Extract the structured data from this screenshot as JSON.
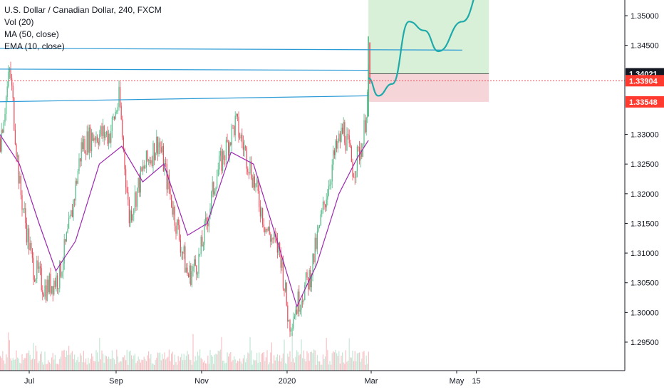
{
  "legend": {
    "title": "U.S. Dollar / Canadian Dollar, 240, FXCM",
    "indicators": [
      "Vol (20)",
      "MA (50, close)",
      "EMA (10, close)"
    ]
  },
  "colors": {
    "up": "#53b987",
    "down": "#eb4d5c",
    "ma": "#9c27b0",
    "ema": "#2196f3",
    "trendline": "#2a9ad6",
    "target_zone": "#d8f0d8",
    "stop_zone": "#f6d5d8",
    "projection": "#1eaaaa",
    "last_price": "#eb4d5c",
    "axis_border": "#131722",
    "tag_dark": "#131722",
    "tag_red": "#ff3b30"
  },
  "chart_data": {
    "type": "candlestick",
    "title": "U.S. Dollar / Canadian Dollar, 240, FXCM",
    "symbol": "USDCAD",
    "timeframe": "240",
    "x_tick_labels": [
      "Jul",
      "Sep",
      "Nov",
      "2020",
      "Mar",
      "May",
      "15"
    ],
    "y_tick_labels": [
      "1.35000",
      "1.34500",
      "1.34021",
      "1.33904",
      "1.33548",
      "1.33000",
      "1.32500",
      "1.32000",
      "1.31500",
      "1.31000",
      "1.30500",
      "1.30000",
      "1.29500"
    ],
    "ylim": [
      1.2905,
      1.3555
    ],
    "price_path": [
      {
        "date": "2019-06-10",
        "price": 1.329
      },
      {
        "date": "2019-06-17",
        "price": 1.341
      },
      {
        "date": "2019-06-24",
        "price": 1.321
      },
      {
        "date": "2019-07-03",
        "price": 1.308
      },
      {
        "date": "2019-07-12",
        "price": 1.304
      },
      {
        "date": "2019-07-22",
        "price": 1.306
      },
      {
        "date": "2019-07-30",
        "price": 1.315
      },
      {
        "date": "2019-08-07",
        "price": 1.328
      },
      {
        "date": "2019-08-16",
        "price": 1.33
      },
      {
        "date": "2019-08-27",
        "price": 1.33
      },
      {
        "date": "2019-09-03",
        "price": 1.336
      },
      {
        "date": "2019-09-10",
        "price": 1.316
      },
      {
        "date": "2019-09-20",
        "price": 1.324
      },
      {
        "date": "2019-10-01",
        "price": 1.329
      },
      {
        "date": "2019-10-10",
        "price": 1.319
      },
      {
        "date": "2019-10-22",
        "price": 1.306
      },
      {
        "date": "2019-10-30",
        "price": 1.309
      },
      {
        "date": "2019-11-11",
        "price": 1.323
      },
      {
        "date": "2019-11-25",
        "price": 1.332
      },
      {
        "date": "2019-12-06",
        "price": 1.324
      },
      {
        "date": "2019-12-17",
        "price": 1.314
      },
      {
        "date": "2019-12-27",
        "price": 1.31
      },
      {
        "date": "2020-01-02",
        "price": 1.298
      },
      {
        "date": "2020-01-09",
        "price": 1.302
      },
      {
        "date": "2020-01-17",
        "price": 1.306
      },
      {
        "date": "2020-01-27",
        "price": 1.318
      },
      {
        "date": "2020-02-03",
        "price": 1.326
      },
      {
        "date": "2020-02-10",
        "price": 1.331
      },
      {
        "date": "2020-02-17",
        "price": 1.324
      },
      {
        "date": "2020-02-24",
        "price": 1.329
      },
      {
        "date": "2020-02-28",
        "price": 1.339
      }
    ],
    "ma_50": [
      {
        "date": "2019-06-10",
        "price": 1.33
      },
      {
        "date": "2019-06-24",
        "price": 1.325
      },
      {
        "date": "2019-07-08",
        "price": 1.315
      },
      {
        "date": "2019-07-20",
        "price": 1.307
      },
      {
        "date": "2019-08-03",
        "price": 1.312
      },
      {
        "date": "2019-08-20",
        "price": 1.325
      },
      {
        "date": "2019-09-05",
        "price": 1.328
      },
      {
        "date": "2019-09-20",
        "price": 1.322
      },
      {
        "date": "2019-10-05",
        "price": 1.325
      },
      {
        "date": "2019-10-22",
        "price": 1.313
      },
      {
        "date": "2019-11-05",
        "price": 1.315
      },
      {
        "date": "2019-11-22",
        "price": 1.327
      },
      {
        "date": "2019-12-08",
        "price": 1.325
      },
      {
        "date": "2019-12-25",
        "price": 1.312
      },
      {
        "date": "2020-01-08",
        "price": 1.301
      },
      {
        "date": "2020-01-22",
        "price": 1.308
      },
      {
        "date": "2020-02-07",
        "price": 1.32
      },
      {
        "date": "2020-02-20",
        "price": 1.326
      },
      {
        "date": "2020-02-28",
        "price": 1.329
      }
    ],
    "volume_note": "Vol (20) histogram at bottom of chart",
    "drawings": {
      "resistance_line": {
        "start": {
          "date": "2019-06-10",
          "price": 1.3445
        },
        "end": {
          "date": "2020-05-05",
          "price": 1.3442
        }
      },
      "support_line": {
        "start": {
          "date": "2019-06-10",
          "price": 1.3355
        },
        "end": {
          "date": "2020-02-28",
          "price": 1.3365
        }
      },
      "horizontal_line": {
        "start": {
          "date": "2019-06-10",
          "price": 1.341
        },
        "end": {
          "date": "2020-02-28",
          "price": 1.3408
        }
      },
      "long_position": {
        "start_date": "2020-02-28",
        "end_date": "2020-05-24",
        "entry": 1.34021,
        "stop": 1.33548,
        "target": 1.3555
      },
      "projection_path": [
        {
          "date": "2020-02-28",
          "price": 1.3395
        },
        {
          "date": "2020-03-06",
          "price": 1.3365
        },
        {
          "date": "2020-03-16",
          "price": 1.3385
        },
        {
          "date": "2020-03-28",
          "price": 1.349
        },
        {
          "date": "2020-04-08",
          "price": 1.3475
        },
        {
          "date": "2020-04-18",
          "price": 1.344
        },
        {
          "date": "2020-05-05",
          "price": 1.349
        },
        {
          "date": "2020-05-20",
          "price": 1.3555
        }
      ]
    },
    "last_price": 1.33904
  }
}
